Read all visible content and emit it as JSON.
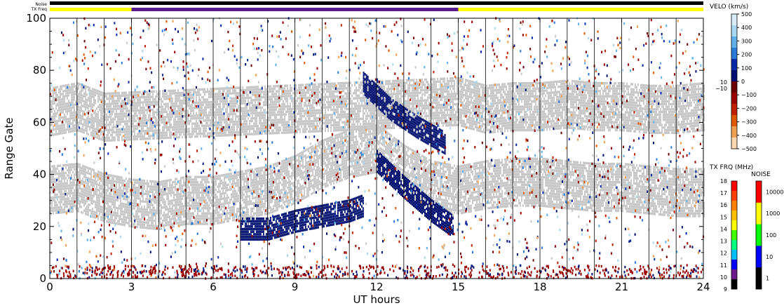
{
  "chart_data": {
    "type": "scatter",
    "title": "",
    "xlabel": "UT hours",
    "ylabel": "Range Gate",
    "xlim": [
      0,
      24
    ],
    "ylim": [
      0,
      100
    ],
    "xticks": [
      0,
      3,
      6,
      9,
      12,
      15,
      18,
      21,
      24
    ],
    "xtick_labels": [
      "0",
      "3",
      "6",
      "9",
      "12",
      "15",
      "18",
      "21",
      "24"
    ],
    "yticks": [
      0,
      20,
      40,
      60,
      80,
      100
    ],
    "ytick_labels": [
      "0",
      "20",
      "40",
      "60",
      "80",
      "100"
    ],
    "vertical_lines_hours": [
      1,
      2,
      3,
      4,
      5,
      6,
      7,
      8,
      9,
      10,
      11,
      12,
      13,
      14,
      15,
      16,
      17,
      18,
      19,
      20,
      21,
      22,
      23
    ],
    "status_bars": {
      "noise_label": "Noise",
      "txfreq_label": "TX Freq",
      "noise_color": "#000000",
      "txfreq_segments": [
        {
          "start": 0,
          "end": 3,
          "color": "#ffff00"
        },
        {
          "start": 3,
          "end": 15,
          "color": "#5a1a8a"
        },
        {
          "start": 15,
          "end": 24,
          "color": "#ffff00"
        }
      ]
    },
    "velocity_scale": {
      "title": "VELO (km/s)",
      "ticks": [
        "500",
        "400",
        "300",
        "200",
        "100",
        "0",
        "−100",
        "−200",
        "−300",
        "−400",
        "−500"
      ],
      "side_labels": [
        "10",
        "−10"
      ],
      "colors_top_to_bottom": [
        "#d8ecf8",
        "#a8d8f0",
        "#60b0e8",
        "#2a7ad8",
        "#0a2aa8",
        "#001070",
        "#6a0000",
        "#9a0000",
        "#c02000",
        "#e05800",
        "#f0a050",
        "#fcd8b0"
      ]
    },
    "txfreq_scale": {
      "title": "TX FRQ (MHz)",
      "ticks": [
        "18",
        "17",
        "16",
        "15",
        "14",
        "13",
        "12",
        "11",
        "10",
        "9"
      ],
      "colors_top_to_bottom": [
        "#ff0000",
        "#ff4000",
        "#ff8000",
        "#ffc000",
        "#ffff00",
        "#40ff00",
        "#00ff80",
        "#00c0ff",
        "#0000ff",
        "#6a1a8a",
        "#000000"
      ]
    },
    "noise_scale": {
      "title": "NOISE",
      "ticks": [
        "10000",
        "1000",
        "100",
        "10",
        "1"
      ],
      "colors_top_to_bottom": [
        "#ff0000",
        "#ffff00",
        "#00ff00",
        "#0000ff",
        "#000000"
      ]
    },
    "series": [
      {
        "type": "band",
        "color": "#c8c8c8",
        "points": [
          [
            0,
            34
          ],
          [
            1,
            35
          ],
          [
            2,
            31
          ],
          [
            3,
            29
          ],
          [
            4,
            28
          ],
          [
            5,
            30
          ],
          [
            6,
            30
          ],
          [
            7,
            32
          ],
          [
            8,
            34
          ],
          [
            9,
            38
          ],
          [
            10,
            44
          ],
          [
            11,
            48
          ],
          [
            12,
            50
          ],
          [
            13,
            42
          ],
          [
            14,
            36
          ],
          [
            15,
            34
          ],
          [
            16,
            36
          ],
          [
            17,
            37
          ],
          [
            18,
            37
          ],
          [
            19,
            36
          ],
          [
            20,
            35
          ],
          [
            21,
            35
          ],
          [
            22,
            34
          ],
          [
            23,
            33
          ],
          [
            24,
            33
          ]
        ]
      },
      {
        "type": "band",
        "color": "#c8c8c8",
        "points": [
          [
            0,
            64
          ],
          [
            1,
            66
          ],
          [
            2,
            62
          ],
          [
            15,
            68
          ],
          [
            16,
            65
          ],
          [
            17,
            66
          ],
          [
            18,
            66
          ],
          [
            19,
            67
          ],
          [
            20,
            66
          ],
          [
            21,
            66
          ],
          [
            22,
            65
          ],
          [
            23,
            65
          ],
          [
            24,
            66
          ]
        ]
      },
      {
        "type": "band",
        "color": "#001070",
        "points": [
          [
            7,
            19
          ],
          [
            8,
            19
          ],
          [
            9,
            22
          ],
          [
            10,
            24
          ],
          [
            11,
            26
          ],
          [
            11.5,
            28
          ]
        ]
      },
      {
        "type": "band",
        "color": "#001070",
        "points": [
          [
            11.5,
            75
          ],
          [
            12.5,
            65
          ],
          [
            13.5,
            58
          ],
          [
            14.5,
            52
          ]
        ]
      },
      {
        "type": "band",
        "color": "#001070",
        "points": [
          [
            12,
            45
          ],
          [
            13,
            35
          ],
          [
            14,
            26
          ],
          [
            14.8,
            20
          ]
        ]
      }
    ]
  }
}
